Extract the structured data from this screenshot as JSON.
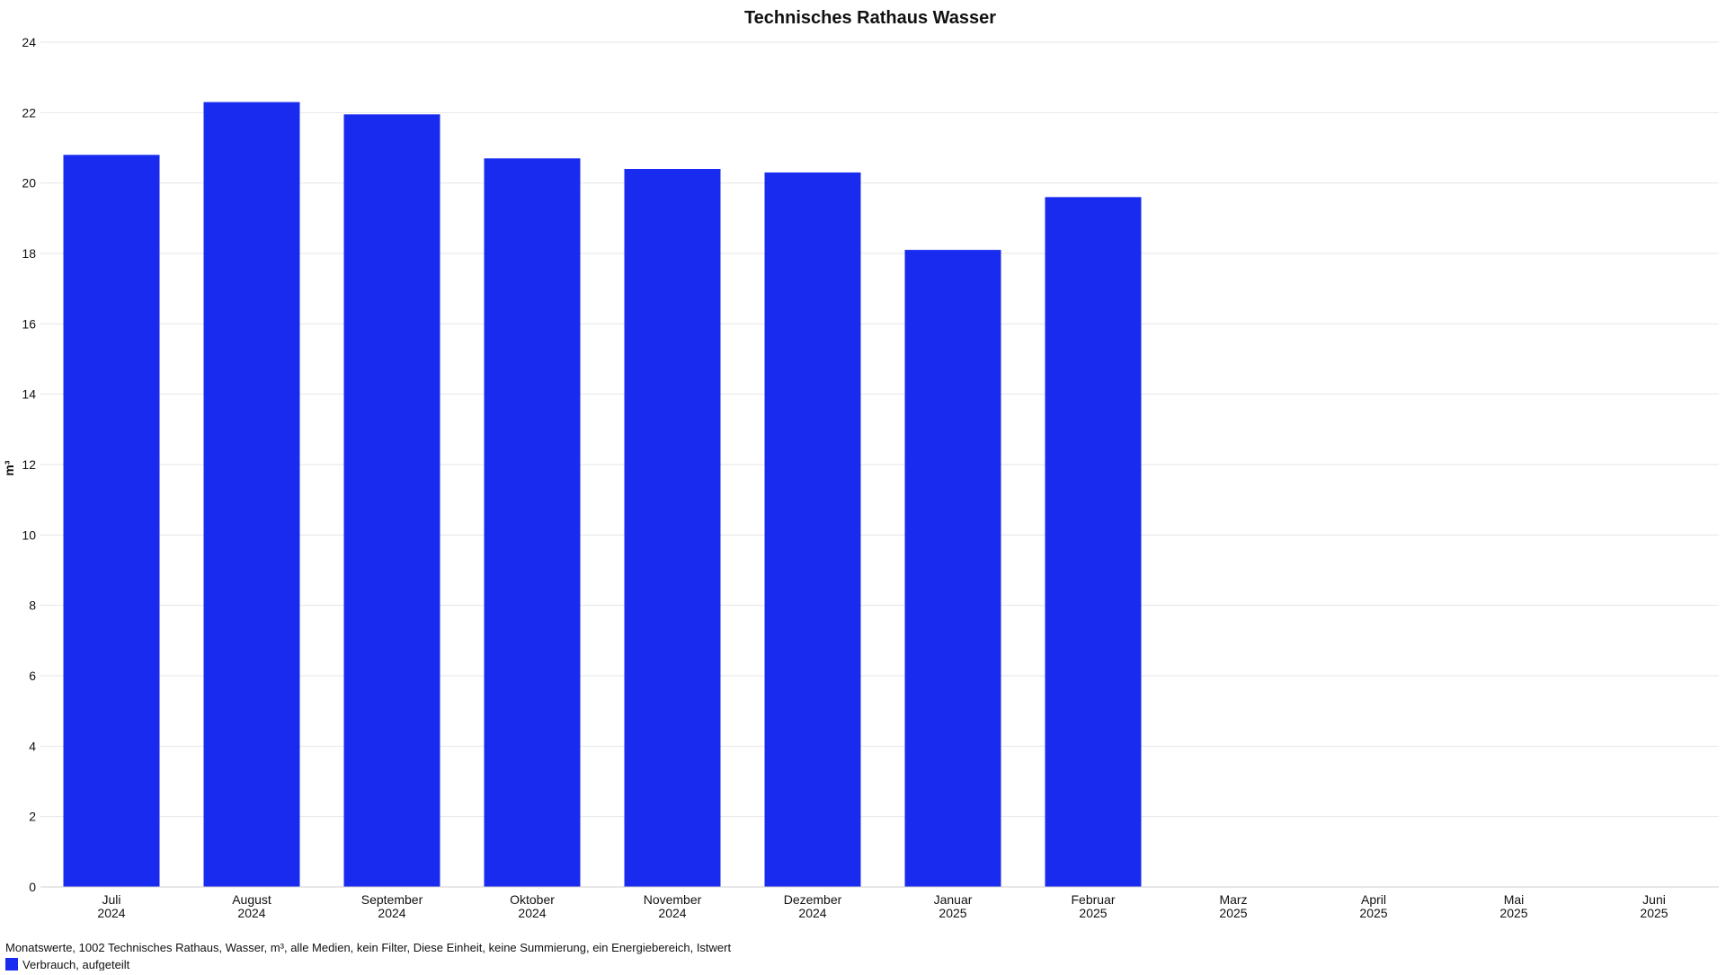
{
  "chart_data": {
    "type": "bar",
    "title": "Technisches Rathaus Wasser",
    "ylabel": "m³",
    "ylim": [
      0,
      24
    ],
    "yticks": [
      0,
      2,
      4,
      6,
      8,
      10,
      12,
      14,
      16,
      18,
      20,
      22,
      24
    ],
    "grid": true,
    "categories": [
      {
        "month": "Juli",
        "year": "2024"
      },
      {
        "month": "August",
        "year": "2024"
      },
      {
        "month": "September",
        "year": "2024"
      },
      {
        "month": "Oktober",
        "year": "2024"
      },
      {
        "month": "November",
        "year": "2024"
      },
      {
        "month": "Dezember",
        "year": "2024"
      },
      {
        "month": "Januar",
        "year": "2025"
      },
      {
        "month": "Februar",
        "year": "2025"
      },
      {
        "month": "Marz",
        "year": "2025"
      },
      {
        "month": "April",
        "year": "2025"
      },
      {
        "month": "Mai",
        "year": "2025"
      },
      {
        "month": "Juni",
        "year": "2025"
      }
    ],
    "series": [
      {
        "name": "Verbrauch, aufgeteilt",
        "color": "#1a2bf0",
        "values": [
          20.8,
          22.3,
          21.95,
          20.7,
          20.4,
          20.3,
          18.1,
          19.6,
          null,
          null,
          null,
          null
        ]
      }
    ],
    "legend_position": "bottom-left",
    "footer": "Monatswerte, 1002 Technisches Rathaus, Wasser, m³, alle Medien, kein Filter, Diese Einheit, keine Summierung, ein Energiebereich, Istwert"
  }
}
